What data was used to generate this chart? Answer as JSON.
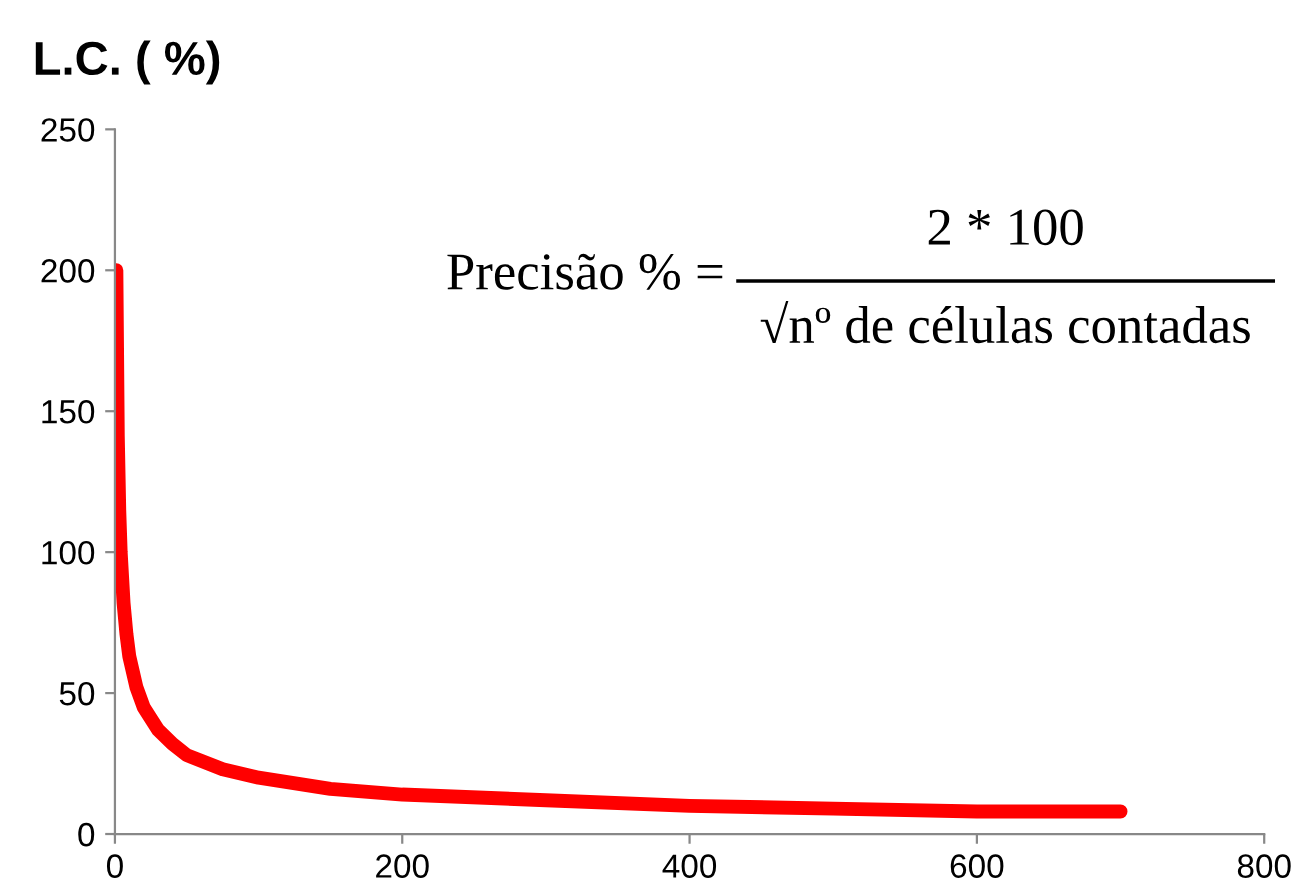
{
  "chart_data": {
    "type": "line",
    "title": "L.C. ( %)",
    "x": [
      1,
      2,
      3,
      4,
      6,
      8,
      10,
      15,
      20,
      30,
      40,
      50,
      75,
      100,
      150,
      200,
      300,
      400,
      500,
      600,
      700
    ],
    "series": [
      {
        "color": "#ff0000",
        "values": [
          200,
          141,
          115,
          100,
          82,
          71,
          63,
          52,
          45,
          37,
          32,
          28,
          23,
          20,
          16,
          14,
          12,
          10,
          9,
          8,
          8
        ]
      }
    ],
    "xlim": [
      0,
      800
    ],
    "xticks": [
      0,
      200,
      400,
      600,
      800
    ],
    "ylim": [
      0,
      250
    ],
    "yticks": [
      0,
      50,
      100,
      150,
      200,
      250
    ],
    "grid": false,
    "legend": false,
    "marker": "none",
    "line_style": "solid",
    "annotations": [
      "Precisão % =",
      "2 * 100",
      "√nº de células contadas"
    ]
  }
}
